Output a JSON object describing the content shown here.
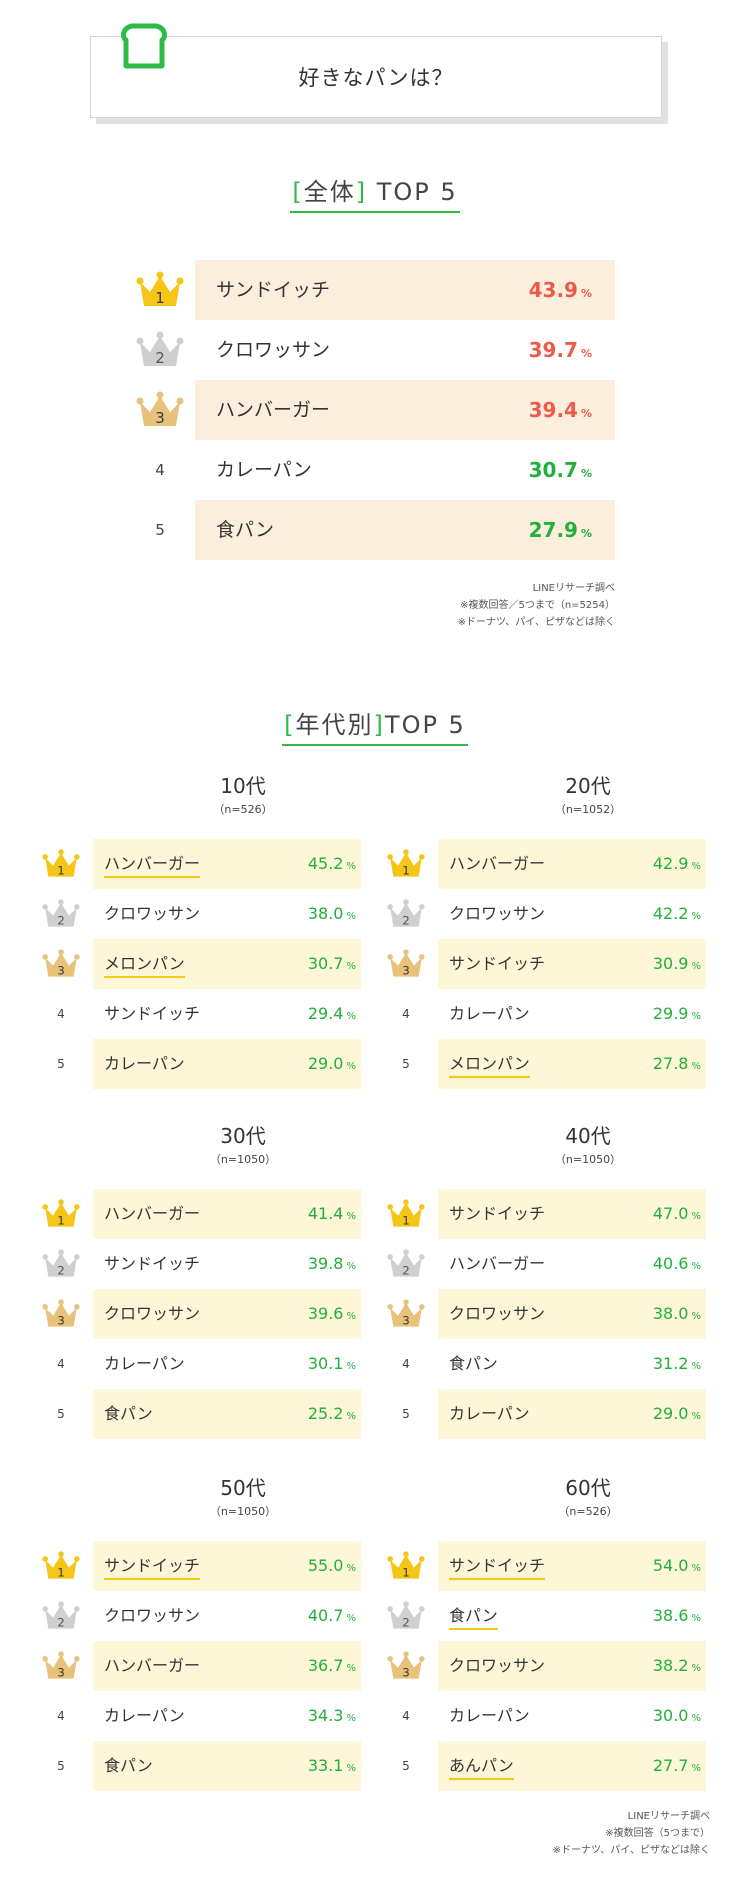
{
  "header": {
    "question": "好きなパンは？"
  },
  "overall": {
    "title_bracket_open": "[",
    "title_scope": "全体",
    "title_bracket_close": "]",
    "title_suffix": "TOP 5",
    "rows": [
      {
        "rank": "1",
        "name": "サンドイッチ",
        "value": "43.9",
        "unit": "%",
        "highlight": true,
        "color": "#ee5a4a"
      },
      {
        "rank": "2",
        "name": "クロワッサン",
        "value": "39.7",
        "unit": "%",
        "highlight": false,
        "color": "#ee5a4a"
      },
      {
        "rank": "3",
        "name": "ハンバーガー",
        "value": "39.4",
        "unit": "%",
        "highlight": true,
        "color": "#ee5a4a"
      },
      {
        "rank": "4",
        "name": "カレーパン",
        "value": "30.7",
        "unit": "%",
        "highlight": false,
        "color": "#22b03a"
      },
      {
        "rank": "5",
        "name": "食パン",
        "value": "27.9",
        "unit": "%",
        "highlight": true,
        "color": "#22b03a"
      }
    ],
    "notes": [
      "LINEリサーチ調べ",
      "※複数回答／5つまで（n=5254）",
      "※ドーナツ、パイ、ピザなどは除く"
    ]
  },
  "by_age": {
    "title_bracket_open": "[",
    "title_scope": "年代別",
    "title_bracket_close": "]",
    "title_suffix": "TOP 5",
    "groups": [
      {
        "age": "10代",
        "n": "（n=526）",
        "rows": [
          {
            "rank": "1",
            "name": "ハンバーガー",
            "value": "45.2",
            "unit": "%",
            "underline": true
          },
          {
            "rank": "2",
            "name": "クロワッサン",
            "value": "38.0",
            "unit": "%",
            "underline": false
          },
          {
            "rank": "3",
            "name": "メロンパン",
            "value": "30.7",
            "unit": "%",
            "underline": true
          },
          {
            "rank": "4",
            "name": "サンドイッチ",
            "value": "29.4",
            "unit": "%",
            "underline": false
          },
          {
            "rank": "5",
            "name": "カレーパン",
            "value": "29.0",
            "unit": "%",
            "underline": false
          }
        ]
      },
      {
        "age": "20代",
        "n": "（n=1052）",
        "rows": [
          {
            "rank": "1",
            "name": "ハンバーガー",
            "value": "42.9",
            "unit": "%",
            "underline": false
          },
          {
            "rank": "2",
            "name": "クロワッサン",
            "value": "42.2",
            "unit": "%",
            "underline": false
          },
          {
            "rank": "3",
            "name": "サンドイッチ",
            "value": "30.9",
            "unit": "%",
            "underline": false
          },
          {
            "rank": "4",
            "name": "カレーパン",
            "value": "29.9",
            "unit": "%",
            "underline": false
          },
          {
            "rank": "5",
            "name": "メロンパン",
            "value": "27.8",
            "unit": "%",
            "underline": true
          }
        ]
      },
      {
        "age": "30代",
        "n": "（n=1050）",
        "rows": [
          {
            "rank": "1",
            "name": "ハンバーガー",
            "value": "41.4",
            "unit": "%",
            "underline": false
          },
          {
            "rank": "2",
            "name": "サンドイッチ",
            "value": "39.8",
            "unit": "%",
            "underline": false
          },
          {
            "rank": "3",
            "name": "クロワッサン",
            "value": "39.6",
            "unit": "%",
            "underline": false
          },
          {
            "rank": "4",
            "name": "カレーパン",
            "value": "30.1",
            "unit": "%",
            "underline": false
          },
          {
            "rank": "5",
            "name": "食パン",
            "value": "25.2",
            "unit": "%",
            "underline": false
          }
        ]
      },
      {
        "age": "40代",
        "n": "（n=1050）",
        "rows": [
          {
            "rank": "1",
            "name": "サンドイッチ",
            "value": "47.0",
            "unit": "%",
            "underline": false
          },
          {
            "rank": "2",
            "name": "ハンバーガー",
            "value": "40.6",
            "unit": "%",
            "underline": false
          },
          {
            "rank": "3",
            "name": "クロワッサン",
            "value": "38.0",
            "unit": "%",
            "underline": false
          },
          {
            "rank": "4",
            "name": "食パン",
            "value": "31.2",
            "unit": "%",
            "underline": false
          },
          {
            "rank": "5",
            "name": "カレーパン",
            "value": "29.0",
            "unit": "%",
            "underline": false
          }
        ]
      },
      {
        "age": "50代",
        "n": "（n=1050）",
        "rows": [
          {
            "rank": "1",
            "name": "サンドイッチ",
            "value": "55.0",
            "unit": "%",
            "underline": true
          },
          {
            "rank": "2",
            "name": "クロワッサン",
            "value": "40.7",
            "unit": "%",
            "underline": false
          },
          {
            "rank": "3",
            "name": "ハンバーガー",
            "value": "36.7",
            "unit": "%",
            "underline": false
          },
          {
            "rank": "4",
            "name": "カレーパン",
            "value": "34.3",
            "unit": "%",
            "underline": false
          },
          {
            "rank": "5",
            "name": "食パン",
            "value": "33.1",
            "unit": "%",
            "underline": false
          }
        ]
      },
      {
        "age": "60代",
        "n": "（n=526）",
        "rows": [
          {
            "rank": "1",
            "name": "サンドイッチ",
            "value": "54.0",
            "unit": "%",
            "underline": true
          },
          {
            "rank": "2",
            "name": "食パン",
            "value": "38.6",
            "unit": "%",
            "underline": true
          },
          {
            "rank": "3",
            "name": "クロワッサン",
            "value": "38.2",
            "unit": "%",
            "underline": false
          },
          {
            "rank": "4",
            "name": "カレーパン",
            "value": "30.0",
            "unit": "%",
            "underline": false
          },
          {
            "rank": "5",
            "name": "あんパン",
            "value": "27.7",
            "unit": "%",
            "underline": true
          }
        ]
      }
    ],
    "notes": [
      "LINEリサーチ調べ",
      "※複数回答（5つまで）",
      "※ドーナツ、パイ、ピザなどは除く"
    ]
  },
  "colors": {
    "accent_green": "#2fba45",
    "value_red": "#ee5a4a",
    "value_green": "#22b03a",
    "gold": "#f5c518",
    "silver": "#cfcfcf",
    "bronze": "#e8c27a"
  },
  "icons": {
    "header": "bread-icon",
    "rank1": "gold-crown-icon",
    "rank2": "silver-crown-icon",
    "rank3": "bronze-crown-icon"
  }
}
